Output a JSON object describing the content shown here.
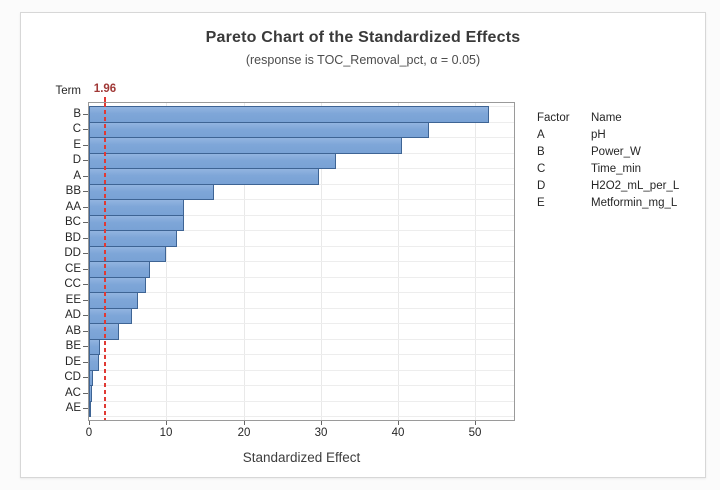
{
  "title": "Pareto Chart of the Standardized Effects",
  "subtitle": "(response is TOC_Removal_pct, α = 0.05)",
  "term_axis_header": "Term",
  "chart_data": {
    "type": "bar",
    "orientation": "horizontal",
    "title": "Pareto Chart of the Standardized Effects",
    "subtitle": "(response is TOC_Removal_pct, α = 0.05)",
    "xlabel": "Standardized Effect",
    "ylabel": "Term",
    "categories": [
      "B",
      "C",
      "E",
      "D",
      "A",
      "BB",
      "AA",
      "BC",
      "BD",
      "DD",
      "CE",
      "CC",
      "EE",
      "AD",
      "AB",
      "BE",
      "DE",
      "CD",
      "AC",
      "AE"
    ],
    "values": [
      51.6,
      43.9,
      40.4,
      31.8,
      29.6,
      16.1,
      12.2,
      12.1,
      11.3,
      9.8,
      7.8,
      7.3,
      6.2,
      5.4,
      3.8,
      1.3,
      1.1,
      0.4,
      0.2,
      0.1
    ],
    "xlim": [
      0,
      55
    ],
    "x_ticks": [
      0,
      10,
      20,
      30,
      40,
      50
    ],
    "grid": "on",
    "reference_line": {
      "value": 1.96,
      "label": "1.96"
    },
    "colors": {
      "bar_fill": "#7ea6d8",
      "bar_border": "#3e6494",
      "reference_line": "#e03a34",
      "reference_label": "#a03836",
      "gridline": "#e9e9e9",
      "frame": "#9a9a9a"
    }
  },
  "xaxis": {
    "label": "Standardized Effect",
    "tick_labels": [
      "0",
      "10",
      "20",
      "30",
      "40",
      "50"
    ]
  },
  "legend": {
    "header": {
      "factor": "Factor",
      "name": "Name"
    },
    "rows": [
      {
        "factor": "A",
        "name": "pH"
      },
      {
        "factor": "B",
        "name": "Power_W"
      },
      {
        "factor": "C",
        "name": "Time_min"
      },
      {
        "factor": "D",
        "name": "H2O2_mL_per_L"
      },
      {
        "factor": "E",
        "name": "Metformin_mg_L"
      }
    ]
  }
}
